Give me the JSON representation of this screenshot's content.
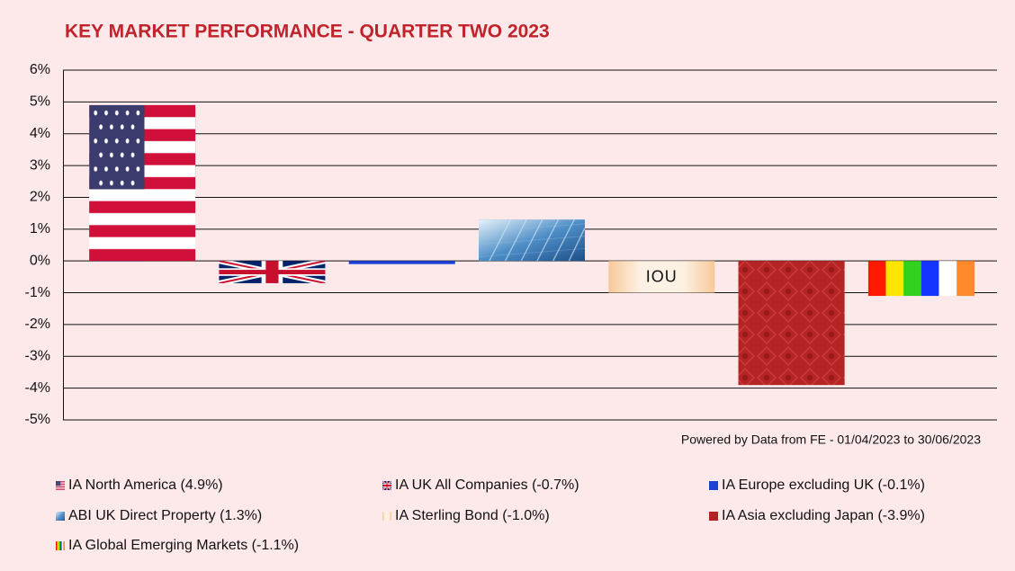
{
  "chart_data": {
    "type": "bar",
    "title": "KEY MARKET PERFORMANCE - QUARTER TWO 2023",
    "source": "Powered by Data from FE - 01/04/2023 to 30/06/2023",
    "categories": [
      "IA North America",
      "IA UK All Companies",
      "IA Europe excluding UK",
      "ABI UK Direct Property",
      "IA Sterling Bond",
      "IA Asia excluding Japan",
      "IA Global Emerging Markets"
    ],
    "values": [
      4.9,
      -0.7,
      -0.1,
      1.3,
      -1.0,
      -3.9,
      -1.1
    ],
    "value_labels": [
      "(4.9%)",
      "(-0.7%)",
      "(-0.1%)",
      "(1.3%)",
      "(-1.0%)",
      "(-3.9%)",
      "(-1.1%)"
    ],
    "annotation": "IOU",
    "ylim": [
      -5,
      6
    ],
    "yticks": [
      {
        "value": -5,
        "label": "-5%"
      },
      {
        "value": -4,
        "label": "-4%"
      },
      {
        "value": -3,
        "label": "-3%"
      },
      {
        "value": -2,
        "label": "-2%"
      },
      {
        "value": -1,
        "label": "-1%"
      },
      {
        "value": 0,
        "label": "0%"
      },
      {
        "value": 1,
        "label": "1%"
      },
      {
        "value": 2,
        "label": "2%"
      },
      {
        "value": 3,
        "label": "3%"
      },
      {
        "value": 4,
        "label": "4%"
      },
      {
        "value": 5,
        "label": "5%"
      },
      {
        "value": 6,
        "label": "6%"
      }
    ],
    "grid": true,
    "legend": "bottom"
  }
}
